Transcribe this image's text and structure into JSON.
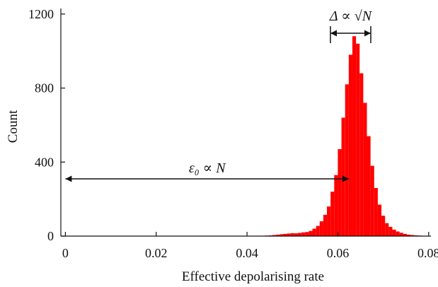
{
  "chart_data": {
    "type": "bar",
    "title": "",
    "xlabel": "Effective depolarising rate",
    "ylabel": "Count",
    "xlim": [
      -0.001,
      0.0805
    ],
    "ylim": [
      0,
      1230
    ],
    "xticks": [
      0,
      0.02,
      0.04,
      0.06,
      0.08
    ],
    "xtick_labels": [
      "0",
      "0.02",
      "0.04",
      "0.06",
      "0.08"
    ],
    "yticks": [
      0,
      400,
      800,
      1200
    ],
    "ytick_labels": [
      "0",
      "400",
      "800",
      "1200"
    ],
    "grid": false,
    "legend": "none",
    "bar_color": "#ff0000",
    "bin_width": 0.0008,
    "x": [
      0.0432,
      0.044,
      0.0448,
      0.0456,
      0.0464,
      0.0472,
      0.048,
      0.0488,
      0.0496,
      0.0504,
      0.0512,
      0.052,
      0.0528,
      0.0536,
      0.0544,
      0.0552,
      0.056,
      0.0568,
      0.0576,
      0.0584,
      0.0592,
      0.06,
      0.0608,
      0.0616,
      0.0624,
      0.0632,
      0.064,
      0.0648,
      0.0656,
      0.0664,
      0.0672,
      0.068,
      0.0688,
      0.0696,
      0.0704,
      0.0712,
      0.072,
      0.0728,
      0.0736,
      0.0744,
      0.0752,
      0.076,
      0.0768,
      0.0776,
      0.0784
    ],
    "values": [
      2,
      3,
      4,
      6,
      8,
      10,
      12,
      14,
      16,
      15,
      17,
      20,
      22,
      28,
      40,
      55,
      80,
      115,
      160,
      240,
      330,
      470,
      640,
      820,
      980,
      1080,
      1040,
      880,
      720,
      540,
      380,
      260,
      170,
      110,
      70,
      50,
      35,
      25,
      18,
      12,
      8,
      6,
      4,
      3,
      2
    ],
    "annotations": {
      "width_label": "Δ ∝ √N",
      "offset_label": "ε₀ ∝ N"
    }
  }
}
